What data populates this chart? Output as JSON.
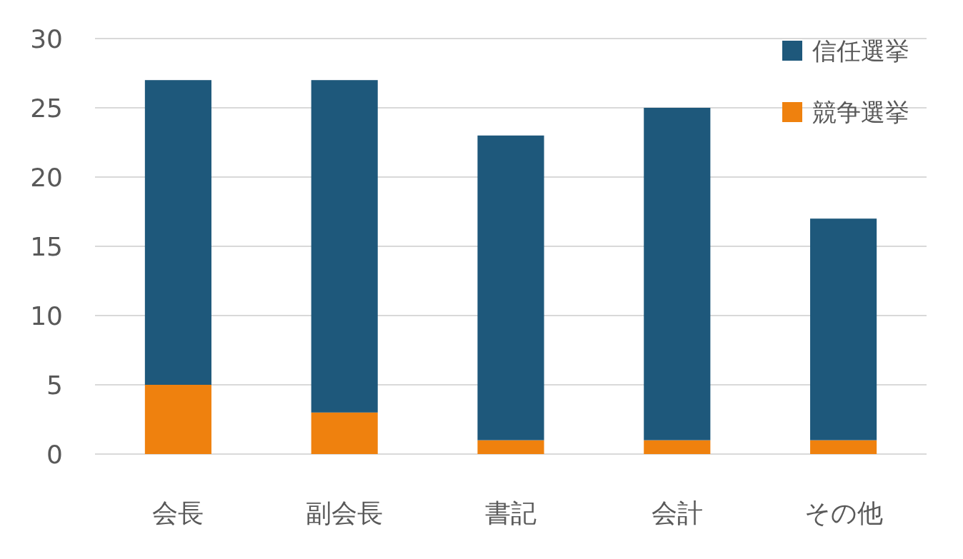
{
  "chart_data": {
    "type": "bar",
    "stacked": true,
    "categories": [
      "会長",
      "副会長",
      "書記",
      "会計",
      "その他"
    ],
    "series": [
      {
        "name": "競争選挙",
        "color": "#ef810e",
        "values": [
          5,
          3,
          1,
          1,
          1
        ]
      },
      {
        "name": "信任選挙",
        "color": "#1e587b",
        "values": [
          22,
          24,
          22,
          24,
          16
        ]
      }
    ],
    "ylim": [
      0,
      30
    ],
    "yticks": [
      0,
      5,
      10,
      15,
      20,
      25,
      30
    ],
    "grid": "y",
    "legend": "top right"
  }
}
